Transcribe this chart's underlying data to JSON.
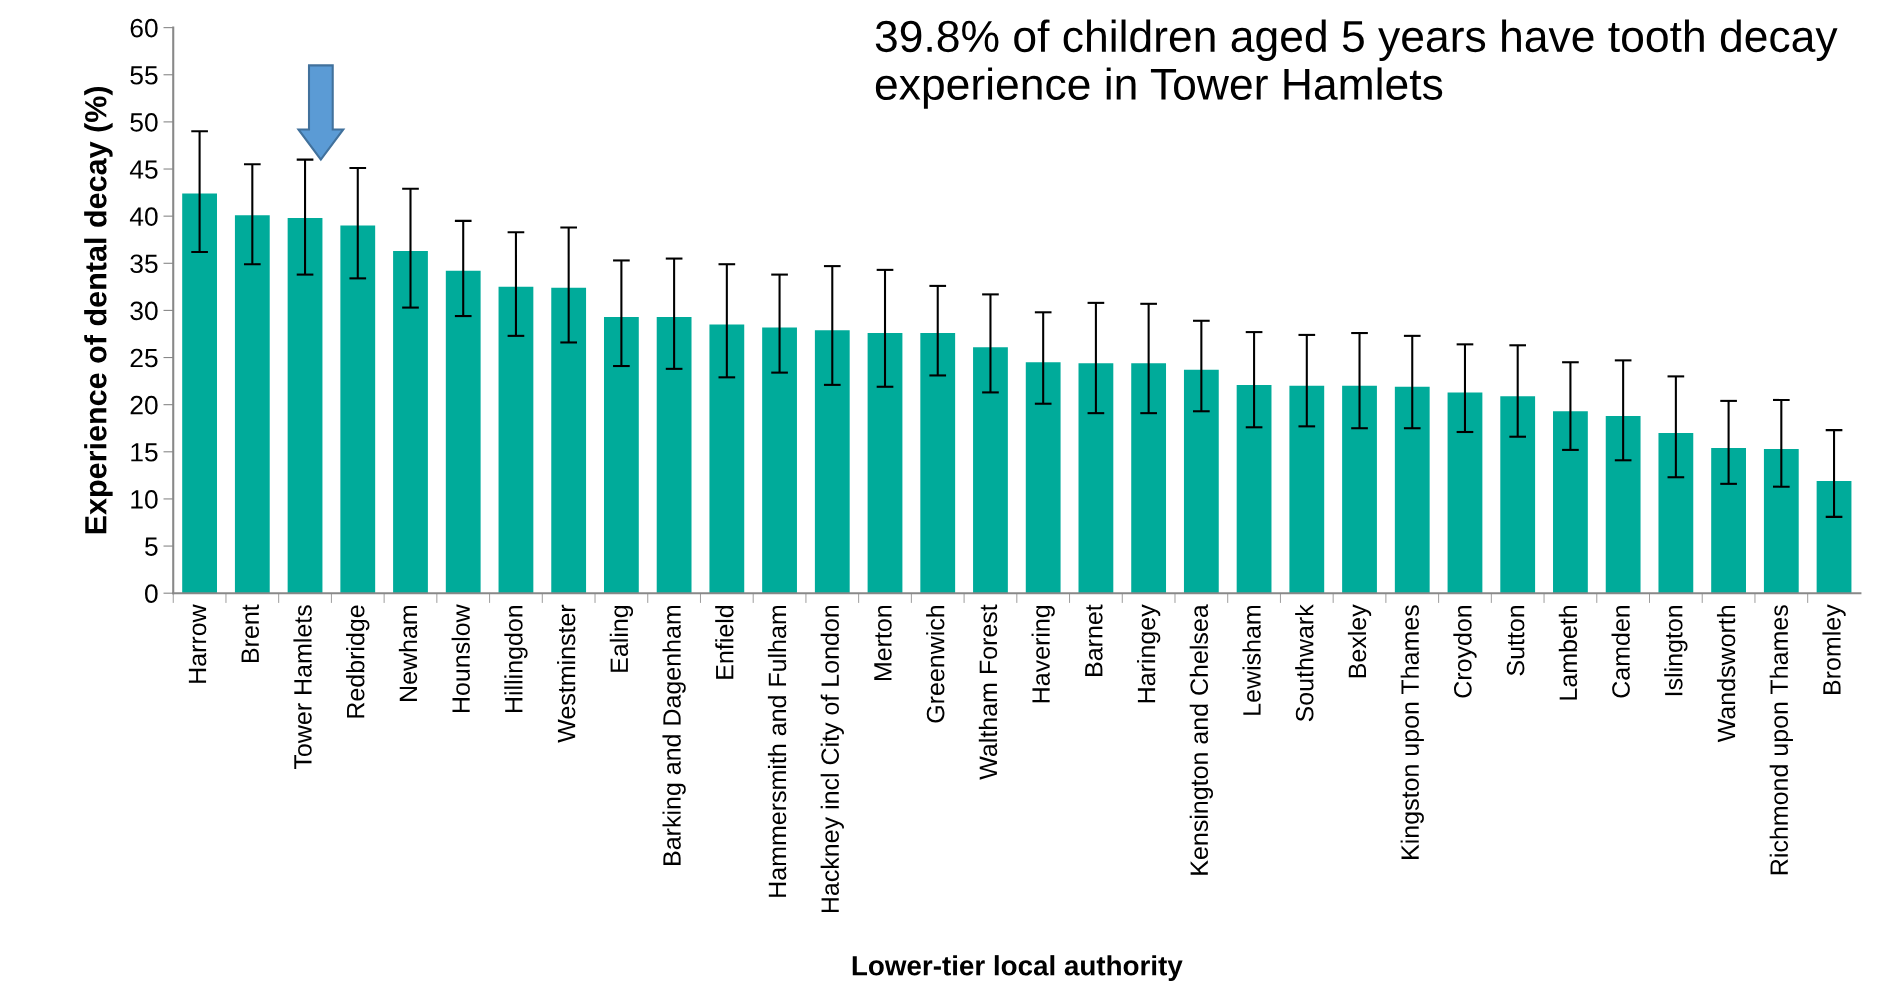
{
  "chart_data": {
    "type": "bar",
    "xlabel": "Lower-tier local authority",
    "ylabel": "Experience of dental decay (%)",
    "categories": [
      "Harrow",
      "Brent",
      "Tower Hamlets",
      "Redbridge",
      "Newham",
      "Hounslow",
      "Hillingdon",
      "Westminster",
      "Ealing",
      "Barking and Dagenham",
      "Enfield",
      "Hammersmith and Fulham",
      "Hackney incl City of London",
      "Merton",
      "Greenwich",
      "Waltham Forest",
      "Havering",
      "Barnet",
      "Haringey",
      "Kensington and Chelsea",
      "Lewisham",
      "Southwark",
      "Bexley",
      "Kingston upon Thames",
      "Croydon",
      "Sutton",
      "Lambeth",
      "Camden",
      "Islington",
      "Wandsworth",
      "Richmond upon Thames",
      "Bromley"
    ],
    "values": [
      42.4,
      40.1,
      39.8,
      39.0,
      36.3,
      34.2,
      32.5,
      32.4,
      29.3,
      29.3,
      28.5,
      28.2,
      27.9,
      27.6,
      27.6,
      26.1,
      24.5,
      24.4,
      24.4,
      23.7,
      22.1,
      22.0,
      22.0,
      21.9,
      21.3,
      20.9,
      19.3,
      18.8,
      17.0,
      15.4,
      15.3,
      11.9
    ],
    "errors": [
      [
        36.2,
        49.0
      ],
      [
        34.9,
        45.5
      ],
      [
        33.8,
        46.0
      ],
      [
        33.4,
        45.1
      ],
      [
        30.3,
        42.9
      ],
      [
        29.4,
        39.5
      ],
      [
        27.3,
        38.3
      ],
      [
        26.6,
        38.8
      ],
      [
        24.1,
        35.3
      ],
      [
        23.8,
        35.5
      ],
      [
        22.9,
        34.9
      ],
      [
        23.4,
        33.8
      ],
      [
        22.1,
        34.7
      ],
      [
        21.9,
        34.3
      ],
      [
        23.1,
        32.6
      ],
      [
        21.3,
        31.7
      ],
      [
        20.1,
        29.8
      ],
      [
        19.1,
        30.8
      ],
      [
        19.1,
        30.7
      ],
      [
        19.3,
        28.9
      ],
      [
        17.6,
        27.7
      ],
      [
        17.7,
        27.4
      ],
      [
        17.5,
        27.6
      ],
      [
        17.5,
        27.3
      ],
      [
        17.1,
        26.4
      ],
      [
        16.6,
        26.3
      ],
      [
        15.2,
        24.5
      ],
      [
        14.1,
        24.7
      ],
      [
        12.3,
        23.0
      ],
      [
        11.6,
        20.4
      ],
      [
        11.3,
        20.5
      ],
      [
        8.1,
        17.3
      ]
    ],
    "color": "#00ab9a",
    "ylim": [
      0,
      60
    ],
    "yticks": [
      0,
      5,
      10,
      15,
      20,
      25,
      30,
      35,
      40,
      45,
      50,
      55,
      60
    ],
    "grid": false,
    "annotations": [
      "39.8% of children aged 5 years have tooth decay\nexperience in Tower Hamlets"
    ]
  }
}
